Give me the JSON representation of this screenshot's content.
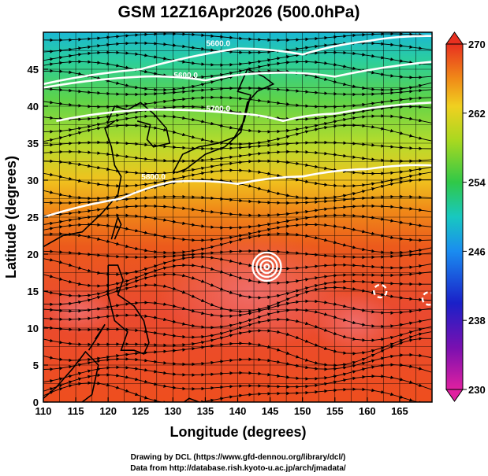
{
  "chart_data": {
    "type": "heatmap",
    "title": "GSM 12Z16Apr2026 (500.0hPa)",
    "xlabel": "Longitude (degrees)",
    "ylabel": "Latitude  (degrees)",
    "xlim": [
      110,
      170
    ],
    "ylim": [
      0,
      50
    ],
    "x_ticks": [
      110,
      115,
      120,
      125,
      130,
      135,
      140,
      145,
      150,
      155,
      160,
      165
    ],
    "y_ticks": [
      0,
      5,
      10,
      15,
      20,
      25,
      30,
      35,
      40,
      45
    ],
    "grid": true,
    "field": "temperature (K), shaded, with streamlines and white contours",
    "colorbar": {
      "min": 230,
      "max": 270,
      "ticks": [
        230,
        238,
        246,
        254,
        262,
        270
      ]
    },
    "contours": [
      {
        "label": "5600.0",
        "lat_at_lon": [
          [
            110,
            43.0
          ],
          [
            125,
            45.0
          ],
          [
            140,
            47.8
          ],
          [
            150,
            47.0
          ],
          [
            160,
            48.8
          ],
          [
            170,
            49.5
          ]
        ]
      },
      {
        "label": "5600.0",
        "lat_at_lon": [
          [
            110,
            42.5
          ],
          [
            125,
            44.0
          ],
          [
            135,
            43.5
          ],
          [
            145,
            44.5
          ],
          [
            155,
            44.0
          ],
          [
            170,
            46.0
          ]
        ]
      },
      {
        "label": "5700.0",
        "lat_at_lon": [
          [
            112,
            38.0
          ],
          [
            125,
            39.5
          ],
          [
            140,
            39.0
          ],
          [
            147,
            38.0
          ],
          [
            155,
            39.0
          ],
          [
            170,
            40.5
          ]
        ]
      },
      {
        "label": "5800.0",
        "lat_at_lon": [
          [
            110,
            25.0
          ],
          [
            122,
            27.5
          ],
          [
            130,
            29.8
          ],
          [
            140,
            29.5
          ],
          [
            150,
            30.5
          ],
          [
            160,
            31.5
          ],
          [
            170,
            32.0
          ]
        ]
      }
    ],
    "features": [
      {
        "label": "low",
        "lon": 144.5,
        "lat": 18.3
      },
      {
        "label": "eddy",
        "lon": 162.0,
        "lat": 15.0
      },
      {
        "label": "eddy",
        "lon": 169.5,
        "lat": 14.0
      }
    ]
  },
  "credits": {
    "line1": "Drawing by DCL (https://www.gfd-dennou.org/library/dcl/)",
    "line2": "Data from http://database.rish.kyoto-u.ac.jp/arch/jmadata/"
  }
}
